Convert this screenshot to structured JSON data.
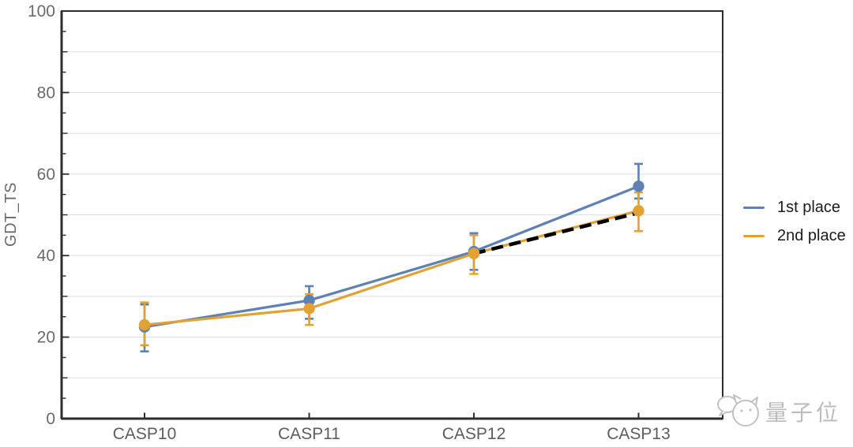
{
  "chart_data": {
    "type": "line",
    "title": "",
    "xlabel": "",
    "ylabel": "GDT_TS",
    "categories": [
      "CASP10",
      "CASP11",
      "CASP12",
      "CASP13"
    ],
    "ylim": [
      0,
      100
    ],
    "yticks": [
      0,
      20,
      40,
      60,
      80,
      100
    ],
    "grid": "horizontal gridlines every 10 units",
    "legend_position": "right-outside",
    "series": [
      {
        "name": "1st place",
        "color": "#5e81b5",
        "values": [
          22.5,
          29,
          41,
          57
        ],
        "err_low": [
          16.5,
          24.5,
          36.5,
          54
        ],
        "err_high": [
          28,
          32.5,
          45.5,
          62.5
        ]
      },
      {
        "name": "2nd place",
        "color": "#e2a233",
        "values": [
          23,
          27,
          40.5,
          51
        ],
        "err_low": [
          18,
          23,
          35.5,
          46
        ],
        "err_high": [
          28.5,
          30.5,
          45,
          55.5
        ]
      }
    ],
    "trend_line": {
      "style": "dashed",
      "color": "#000000",
      "from_category": "CASP12",
      "to_category": "CASP13",
      "values": [
        40.5,
        50.5
      ]
    }
  },
  "colors": {
    "frame": "#2d2d2d",
    "gridline": "#e2e2e2",
    "y_tick_label": "#6a6a6a",
    "x_tick_label": "#5d5d5d",
    "axis_title": "#6a6a6a",
    "legend_text": "#1b1b1b",
    "watermark": "#bcbcbc",
    "background": "#ffffff"
  },
  "watermark": {
    "text": "量子位",
    "icon": "qbitai-cat-logo"
  }
}
